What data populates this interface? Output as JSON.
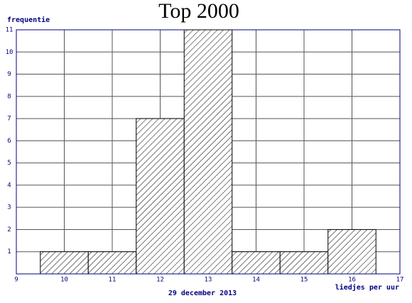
{
  "chart_data": {
    "type": "bar",
    "title": "Top 2000",
    "subtitle": "29 december 2013",
    "x_label": "liedjes per uur",
    "y_label": "frequentie",
    "x": [
      10,
      11,
      12,
      13,
      14,
      15,
      16
    ],
    "values": [
      1,
      1,
      7,
      11,
      1,
      1,
      2
    ],
    "xlim": [
      9,
      17
    ],
    "xticks": [
      9,
      10,
      11,
      12,
      13,
      14,
      15,
      16,
      17
    ],
    "ylim": [
      0,
      11
    ],
    "yticks": [
      1,
      2,
      3,
      4,
      5,
      6,
      7,
      8,
      9,
      10,
      11
    ],
    "grid": true,
    "color": "#000000"
  }
}
